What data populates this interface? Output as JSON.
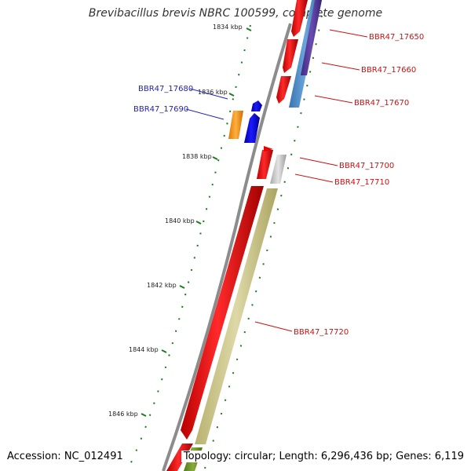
{
  "title": "Brevibacillus brevis NBRC 100599, complete genome",
  "accession_text": "Accession: NC_012491",
  "summary_text": "Topology: circular; Length: 6,296,436 bp; Genes: 6,119",
  "colors": {
    "backbone": "#8c8c8c",
    "tick": "#1e7a1e",
    "forward_gene": "#0000ee",
    "reverse_gene": "#ee0000",
    "forward_label": "#1f1fb8",
    "reverse_label": "#cc1111"
  },
  "scale": {
    "unit": "kbp",
    "labels": [
      {
        "pos": 1834,
        "text": "1834 kbp"
      },
      {
        "pos": 1836,
        "text": "1836 kbp"
      },
      {
        "pos": 1838,
        "text": "1838 kbp"
      },
      {
        "pos": 1840,
        "text": "1840 kbp"
      },
      {
        "pos": 1842,
        "text": "1842 kbp"
      },
      {
        "pos": 1844,
        "text": "1844 kbp"
      },
      {
        "pos": 1846,
        "text": "1846 kbp"
      }
    ]
  },
  "genes": [
    {
      "name": "BBR47_17650",
      "strand": "reverse"
    },
    {
      "name": "BBR47_17660",
      "strand": "reverse"
    },
    {
      "name": "BBR47_17670",
      "strand": "reverse"
    },
    {
      "name": "BBR47_17680",
      "strand": "forward"
    },
    {
      "name": "BBR47_17690",
      "strand": "forward"
    },
    {
      "name": "BBR47_17700",
      "strand": "reverse"
    },
    {
      "name": "BBR47_17710",
      "strand": "reverse"
    },
    {
      "name": "BBR47_17720",
      "strand": "reverse"
    }
  ],
  "track_colors": {
    "cog_blue": "#4f8fcc",
    "cog_purple": "#5a3a9a",
    "cog_orange": "#ff9a1a",
    "cog_grey": "#c8c8c8",
    "cog_olive": "#cfc98e",
    "cog_green": "#6b8e23"
  }
}
